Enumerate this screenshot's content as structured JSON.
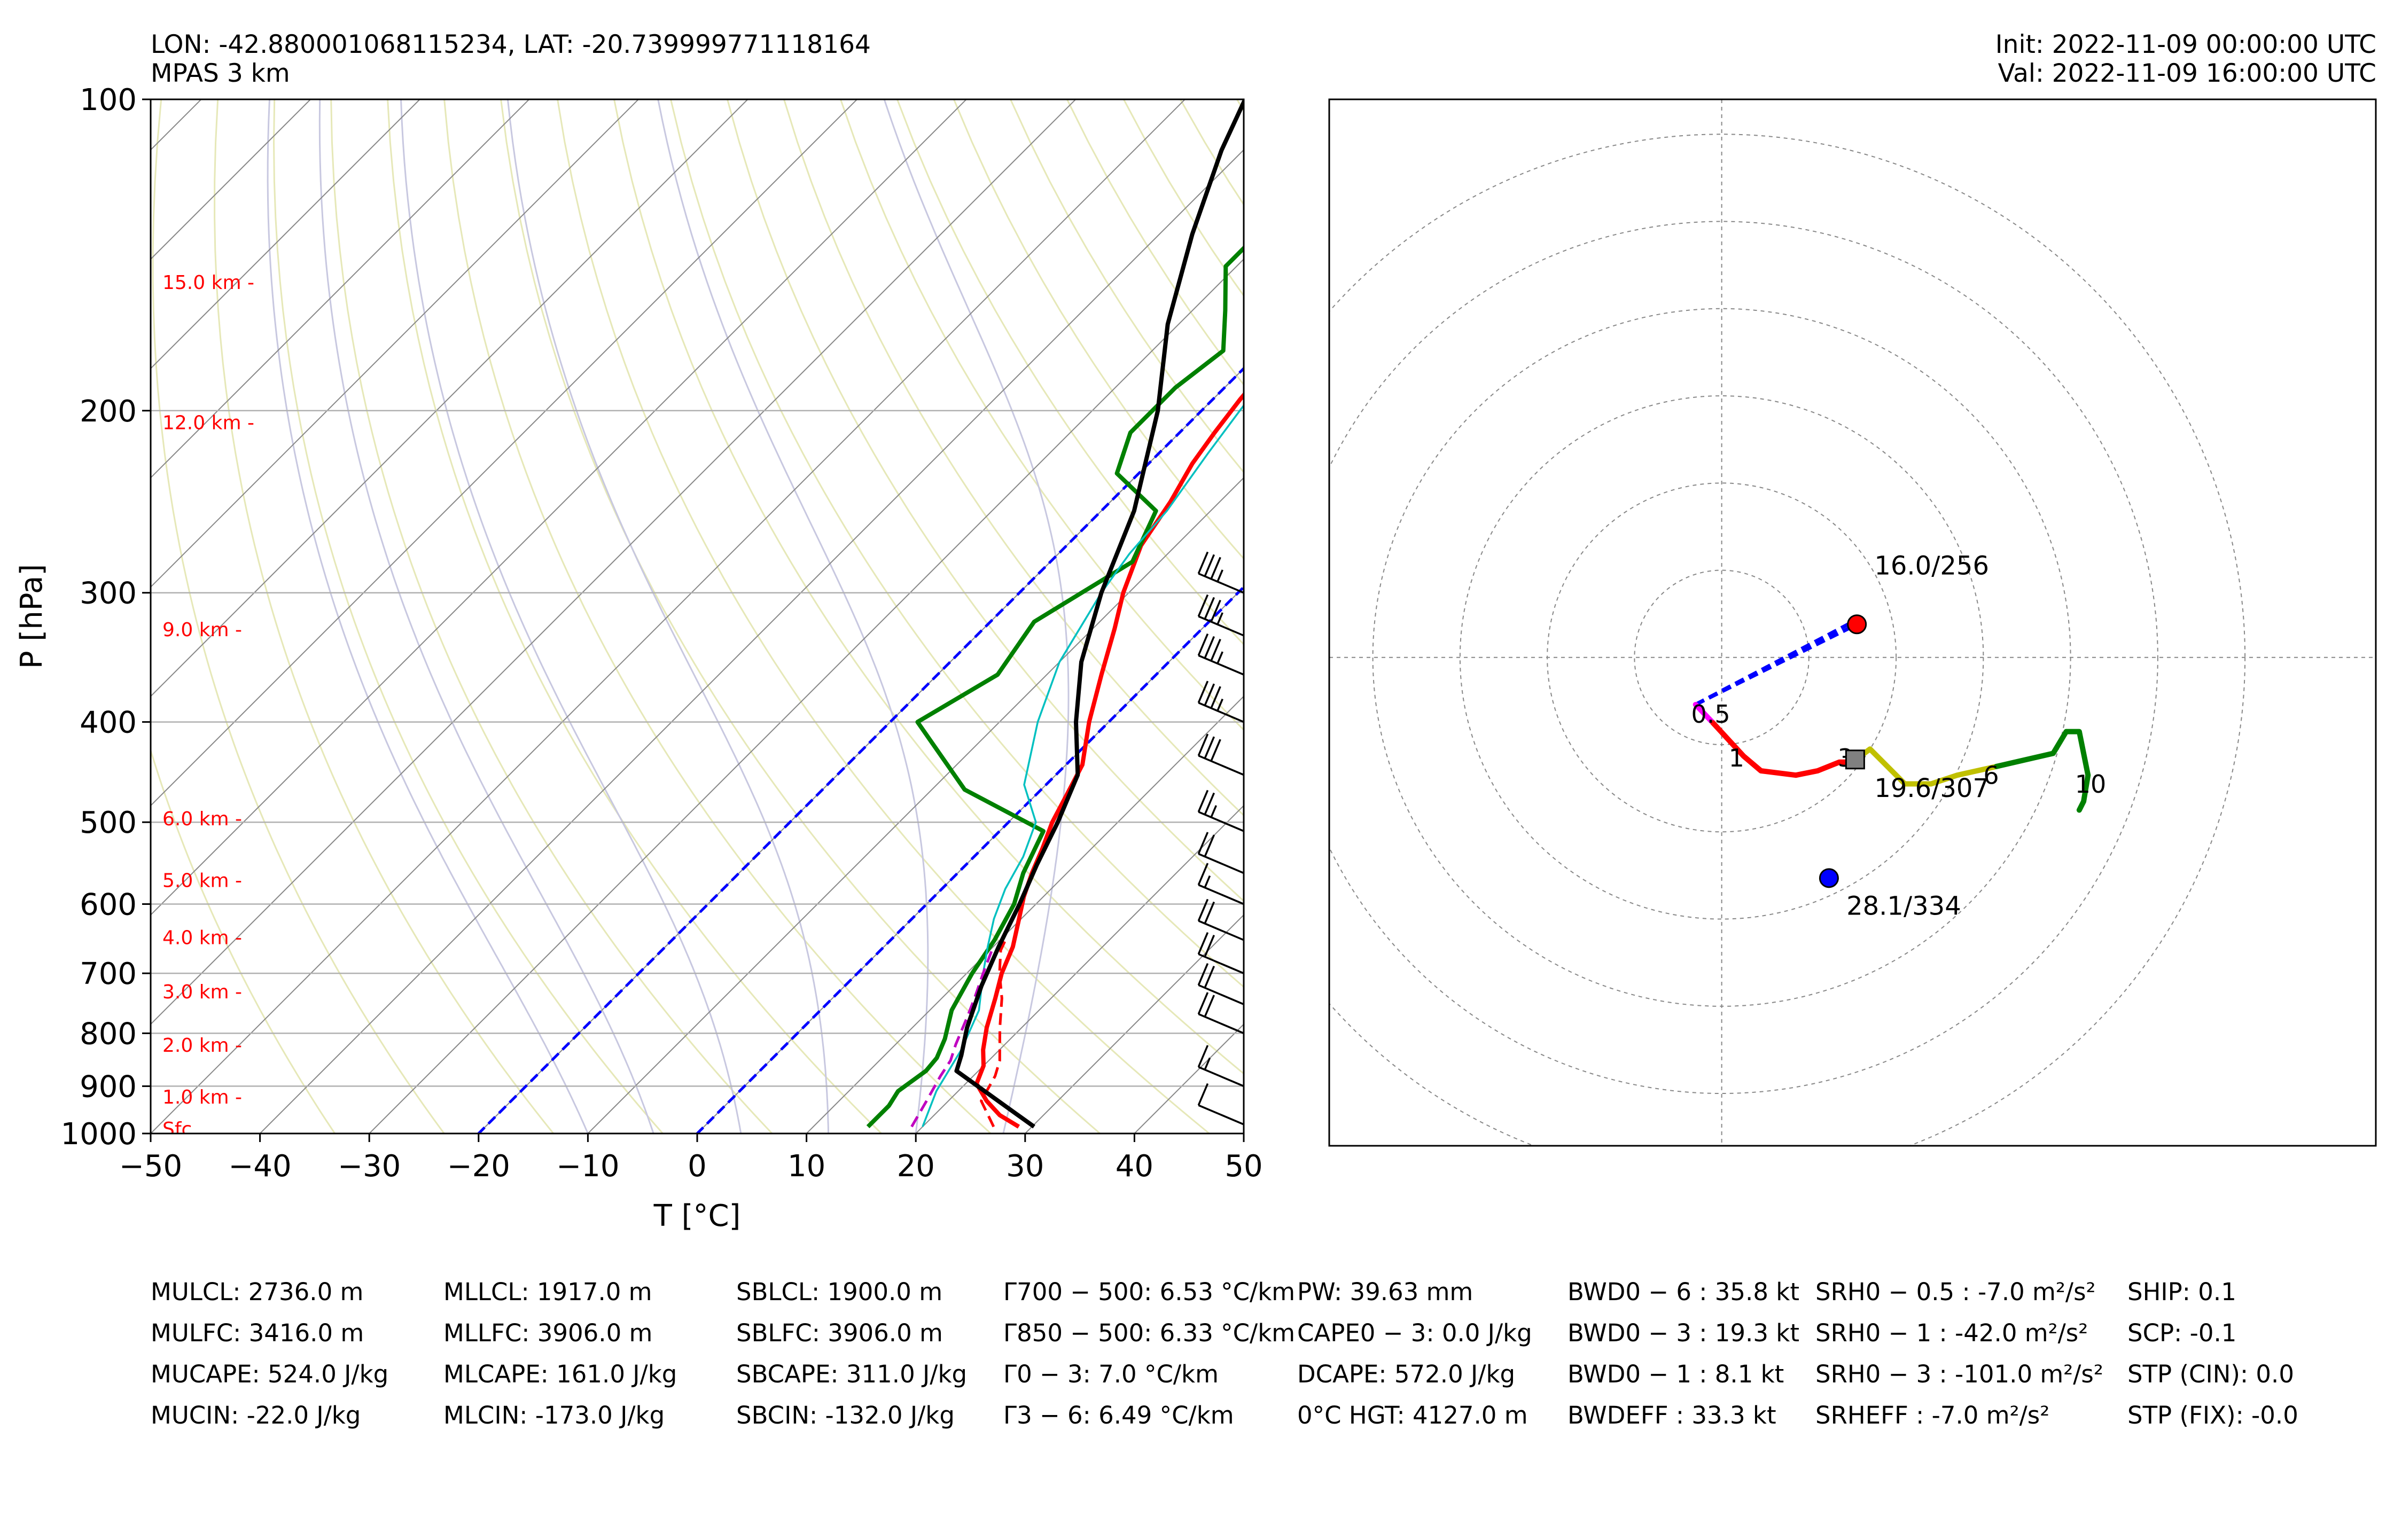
{
  "header": {
    "location": "LON: -42.880001068115234, LAT: -20.739999771118164",
    "model": "MPAS 3 km",
    "init": "Init: 2022-11-09 00:00:00 UTC",
    "valid": "Val: 2022-11-09 16:00:00 UTC"
  },
  "chart_data": [
    {
      "type": "line",
      "subtype": "skew-T log-P",
      "xlabel": "T [°C]",
      "ylabel": "P [hPa]",
      "xlim": [
        -50,
        50
      ],
      "ylim": [
        1000,
        100
      ],
      "y_scale": "log",
      "x_ticks": [
        "−50",
        "−40",
        "−30",
        "−20",
        "−10",
        "0",
        "10",
        "20",
        "30",
        "40",
        "50"
      ],
      "y_ticks": [
        100,
        200,
        300,
        400,
        500,
        600,
        700,
        800,
        900,
        1000
      ],
      "height_labels": [
        {
          "p": 150,
          "label": "15.0 km -"
        },
        {
          "p": 205,
          "label": "12.0 km -"
        },
        {
          "p": 325,
          "label": "9.0 km -"
        },
        {
          "p": 495,
          "label": "6.0 km -"
        },
        {
          "p": 568,
          "label": "5.0 km -"
        },
        {
          "p": 645,
          "label": "4.0 km -"
        },
        {
          "p": 728,
          "label": "3.0 km -"
        },
        {
          "p": 820,
          "label": "2.0 km -"
        },
        {
          "p": 920,
          "label": "1.0 km -"
        },
        {
          "p": 988,
          "label": "Sfc"
        }
      ],
      "series": [
        {
          "role": "temperature",
          "color": "#ff0000",
          "points": [
            [
              28.8,
              985
            ],
            [
              26,
              960
            ],
            [
              23.5,
              930
            ],
            [
              21,
              895
            ],
            [
              20,
              860
            ],
            [
              18.5,
              830
            ],
            [
              16.8,
              790
            ],
            [
              14.9,
              740
            ],
            [
              13.2,
              700
            ],
            [
              11.8,
              660
            ],
            [
              9.8,
              620
            ],
            [
              8.2,
              590
            ],
            [
              6.8,
              560
            ],
            [
              5.5,
              530
            ],
            [
              4,
              500
            ],
            [
              2.8,
              470
            ],
            [
              1.5,
              440
            ],
            [
              -1.8,
              400
            ],
            [
              -5,
              360
            ],
            [
              -8,
              325
            ],
            [
              -10.5,
              300
            ],
            [
              -13.2,
              270
            ],
            [
              -14.5,
              245
            ],
            [
              -16,
              225
            ],
            [
              -16.8,
              210
            ],
            [
              -17.5,
              195
            ],
            [
              -18,
              180
            ],
            [
              -17.5,
              165
            ],
            [
              -16.5,
              150
            ],
            [
              -15.5,
              135
            ],
            [
              -15,
              122
            ],
            [
              -15.2,
              110
            ],
            [
              -14,
              100
            ]
          ]
        },
        {
          "role": "dewpoint",
          "color": "#008000",
          "points": [
            [
              15,
              985
            ],
            [
              15,
              960
            ],
            [
              15,
              940
            ],
            [
              14.5,
              910
            ],
            [
              15.2,
              870
            ],
            [
              15,
              845
            ],
            [
              14,
              810
            ],
            [
              12,
              760
            ],
            [
              10.5,
              700
            ],
            [
              9.5,
              650
            ],
            [
              8,
              600
            ],
            [
              6,
              560
            ],
            [
              4,
              510
            ],
            [
              -7,
              465
            ],
            [
              -17.5,
              400
            ],
            [
              -14.5,
              360
            ],
            [
              -16,
              320
            ],
            [
              -12.5,
              280
            ],
            [
              -15,
              250
            ],
            [
              -22,
              230
            ],
            [
              -24.5,
              210
            ],
            [
              -24.5,
              190
            ],
            [
              -23.5,
              175
            ],
            [
              -27,
              160
            ],
            [
              -31,
              145
            ],
            [
              -31,
              130
            ],
            [
              -31,
              115
            ],
            [
              -30,
              100
            ]
          ]
        },
        {
          "role": "parcel-virtual",
          "color": "#00c0c0",
          "points": [
            [
              20,
              985
            ],
            [
              18,
              910
            ],
            [
              16.5,
              830
            ],
            [
              14.5,
              760
            ],
            [
              11.5,
              700
            ],
            [
              9.5,
              660
            ],
            [
              7.5,
              620
            ],
            [
              5.8,
              580
            ],
            [
              4.5,
              540
            ],
            [
              2.5,
              500
            ],
            [
              -2,
              460
            ],
            [
              -6.5,
              400
            ],
            [
              -10,
              350
            ],
            [
              -12.5,
              300
            ],
            [
              -13.5,
              275
            ],
            [
              -14,
              250
            ],
            [
              -15.5,
              220
            ],
            [
              -16.5,
              200
            ],
            [
              -17.5,
              180
            ],
            [
              -17.8,
              168
            ],
            [
              -17,
              155
            ],
            [
              -16,
              140
            ],
            [
              -15.5,
              125
            ],
            [
              -15.5,
              112
            ],
            [
              -14.5,
              100
            ]
          ]
        },
        {
          "role": "mean-layer-parcel",
          "color": "#c000c0",
          "dash": "dashed",
          "points": [
            [
              19,
              985
            ],
            [
              18,
              930
            ],
            [
              17,
              880
            ],
            [
              16.5,
              850
            ],
            [
              15.5,
              820
            ],
            [
              14,
              770
            ],
            [
              13,
              740
            ],
            [
              11.5,
              700
            ],
            [
              10,
              660
            ]
          ]
        },
        {
          "role": "virtual-temperature",
          "color": "#ff0000",
          "dash": "dashed",
          "points": [
            [
              26.5,
              985
            ],
            [
              23,
              930
            ],
            [
              22,
              880
            ],
            [
              21,
              850
            ],
            [
              18,
              790
            ],
            [
              15.5,
              740
            ],
            [
              13,
              700
            ],
            [
              11,
              665
            ],
            [
              10.5,
              650
            ]
          ]
        },
        {
          "role": "surface-parcel",
          "color": "#000000",
          "points": [
            [
              30.2,
              985
            ],
            [
              18,
              870
            ],
            [
              17,
              840
            ],
            [
              15,
              790
            ],
            [
              12.5,
              720
            ],
            [
              10.5,
              660
            ],
            [
              8.5,
              600
            ],
            [
              6.5,
              550
            ],
            [
              4.5,
              500
            ],
            [
              2,
              450
            ],
            [
              -3,
              400
            ],
            [
              -8,
              350
            ],
            [
              -12.5,
              300
            ],
            [
              -17,
              250
            ],
            [
              -24,
              200
            ],
            [
              -31,
              165
            ],
            [
              -37,
              135
            ],
            [
              -42,
              112
            ],
            [
              -44.5,
              100
            ]
          ]
        }
      ],
      "reference_lines": {
        "freezing_isotherm": {
          "color": "#0000ff",
          "dash": "dashed",
          "x": 0
        },
        "minus20_isotherm": {
          "color": "#0000ff",
          "dash": "dashed",
          "x": -20
        },
        "isotherm_color": "#888888",
        "dry_adiabat_color": "#e6e8b8",
        "moist_adiabat_color": "#c8c8e0"
      },
      "wind_barbs": [
        {
          "p": 300,
          "speed_kt": 35
        },
        {
          "p": 330,
          "speed_kt": 35
        },
        {
          "p": 360,
          "speed_kt": 35
        },
        {
          "p": 400,
          "speed_kt": 35
        },
        {
          "p": 450,
          "speed_kt": 30
        },
        {
          "p": 510,
          "speed_kt": 25
        },
        {
          "p": 560,
          "speed_kt": 20
        },
        {
          "p": 600,
          "speed_kt": 15
        },
        {
          "p": 650,
          "speed_kt": 20
        },
        {
          "p": 700,
          "speed_kt": 20
        },
        {
          "p": 750,
          "speed_kt": 20
        },
        {
          "p": 800,
          "speed_kt": 20
        },
        {
          "p": 900,
          "speed_kt": 15
        },
        {
          "p": 980,
          "speed_kt": 10
        }
      ]
    },
    {
      "type": "line",
      "subtype": "hodograph",
      "rings_kt": [
        10,
        20,
        30,
        40,
        50,
        60
      ],
      "xlim": [
        -45,
        75
      ],
      "ylim": [
        -56,
        64
      ],
      "segments": [
        {
          "color": "#ff00ff",
          "points": [
            [
              -3,
              -5.4
            ],
            [
              -1,
              -7.5
            ]
          ]
        },
        {
          "color": "#ff0000",
          "points": [
            [
              -1,
              -7.5
            ],
            [
              2.5,
              -11.3
            ],
            [
              4.5,
              -13
            ],
            [
              8.5,
              -13.5
            ],
            [
              11,
              -13
            ],
            [
              13.5,
              -12
            ],
            [
              15,
              -12
            ]
          ]
        },
        {
          "color": "#c0c000",
          "points": [
            [
              15,
              -12
            ],
            [
              17,
              -10.5
            ],
            [
              21,
              -14.5
            ],
            [
              24,
              -14.5
            ],
            [
              27,
              -13.5
            ],
            [
              31.5,
              -12.5
            ]
          ]
        },
        {
          "color": "#008000",
          "points": [
            [
              31.5,
              -12.5
            ],
            [
              38,
              -11
            ],
            [
              39.5,
              -8.5
            ],
            [
              41,
              -8.5
            ],
            [
              42,
              -13.5
            ],
            [
              41.5,
              -16.5
            ],
            [
              41,
              -17.5
            ]
          ]
        }
      ],
      "storm_motion_lines": {
        "color": "#0000ff",
        "dash": "dashed",
        "from": [
          -3,
          -5.4
        ],
        "to": [
          [
            15.5,
            3.8
          ],
          [
            14.5,
            3.8
          ]
        ]
      },
      "height_labels": [
        {
          "label": "0.5",
          "pos": [
            -3.5,
            -7.5
          ]
        },
        {
          "label": "1",
          "pos": [
            0.8,
            -12.5
          ]
        },
        {
          "label": "3",
          "pos": [
            13.3,
            -12.5
          ]
        },
        {
          "label": "6",
          "pos": [
            30,
            -14.5
          ]
        },
        {
          "label": "10",
          "pos": [
            40.5,
            -15.5
          ]
        }
      ],
      "markers": [
        {
          "label": "16.0/256",
          "pos": [
            15.5,
            3.8
          ],
          "label_pos": [
            17.5,
            9.5
          ],
          "color": "#ff0000",
          "shape": "circle"
        },
        {
          "label": "19.6/307",
          "pos": [
            15.3,
            -11.7
          ],
          "label_pos": [
            17.5,
            -16
          ],
          "color": "#808080",
          "shape": "square"
        },
        {
          "label": "28.1/334",
          "pos": [
            12.3,
            -25.3
          ],
          "label_pos": [
            14.3,
            -29.5
          ],
          "color": "#0000ff",
          "shape": "circle"
        }
      ]
    }
  ],
  "parameters": [
    [
      "MULCL: 2736.0 m",
      "MULFC: 3416.0 m",
      "MUCAPE: 524.0 J/kg",
      "MUCIN: -22.0 J/kg"
    ],
    [
      "MLLCL: 1917.0 m",
      "MLLFC: 3906.0 m",
      "MLCAPE: 161.0 J/kg",
      "MLCIN: -173.0 J/kg"
    ],
    [
      "SBLCL: 1900.0 m",
      "SBLFC: 3906.0 m",
      "SBCAPE: 311.0 J/kg",
      "SBCIN: -132.0 J/kg"
    ],
    [
      "Γ700 − 500: 6.53 °C/km",
      "Γ850 − 500: 6.33 °C/km",
      "Γ0 − 3: 7.0 °C/km",
      "Γ3 − 6: 6.49 °C/km"
    ],
    [
      "PW: 39.63 mm",
      "CAPE0 − 3: 0.0 J/kg",
      "DCAPE: 572.0 J/kg",
      "0°C HGT: 4127.0 m"
    ],
    [
      "BWD0 − 6 : 35.8 kt",
      "BWD0 − 3 : 19.3 kt",
      "BWD0 − 1 : 8.1 kt",
      "BWDEFF : 33.3 kt"
    ],
    [
      "SRH0 − 0.5 : -7.0 m²/s²",
      "SRH0 − 1 : -42.0 m²/s²",
      "SRH0 − 3 : -101.0 m²/s²",
      "SRHEFF : -7.0 m²/s²"
    ],
    [
      "SHIP: 0.1",
      "SCP: -0.1",
      "STP (CIN): 0.0",
      "STP (FIX): -0.0"
    ]
  ]
}
